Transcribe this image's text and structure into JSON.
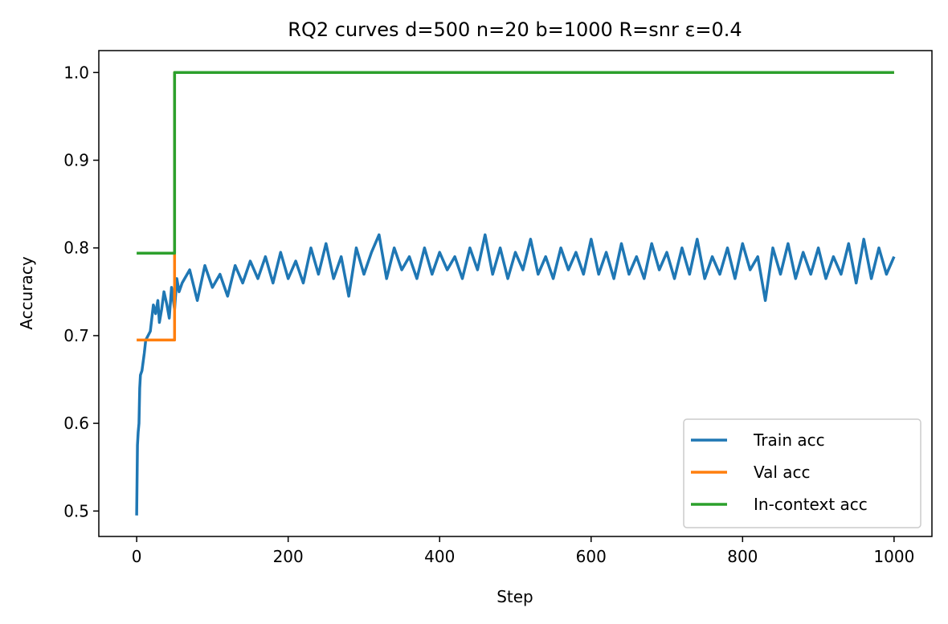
{
  "chart_data": {
    "type": "line",
    "title": "RQ2 curves d=500 n=20 b=1000 R=snr ε=0.4",
    "xlabel": "Step",
    "ylabel": "Accuracy",
    "xlim": [
      -50,
      1050
    ],
    "ylim": [
      0.471,
      1.025
    ],
    "xticks": [
      0,
      200,
      400,
      600,
      800,
      1000
    ],
    "xtick_labels": [
      "0",
      "200",
      "400",
      "600",
      "800",
      "1000"
    ],
    "yticks": [
      0.5,
      0.6,
      0.7,
      0.8,
      0.9,
      1.0
    ],
    "ytick_labels": [
      "0.5",
      "0.6",
      "0.7",
      "0.8",
      "0.9",
      "1.0"
    ],
    "grid": false,
    "legend_placement": "lower right",
    "series": [
      {
        "name": "Train acc",
        "color": "#1f77b4",
        "x": [
          0,
          1,
          2,
          3,
          4,
          5,
          7,
          10,
          12,
          15,
          18,
          20,
          22,
          25,
          28,
          30,
          33,
          36,
          40,
          43,
          46,
          50,
          53,
          56,
          60,
          70,
          80,
          90,
          100,
          110,
          120,
          130,
          140,
          150,
          160,
          170,
          180,
          190,
          200,
          210,
          220,
          230,
          240,
          250,
          260,
          270,
          280,
          290,
          300,
          310,
          320,
          330,
          340,
          350,
          360,
          370,
          380,
          390,
          400,
          410,
          420,
          430,
          440,
          450,
          460,
          470,
          480,
          490,
          500,
          510,
          520,
          530,
          540,
          550,
          560,
          570,
          580,
          590,
          600,
          610,
          620,
          630,
          640,
          650,
          660,
          670,
          680,
          690,
          700,
          710,
          720,
          730,
          740,
          750,
          760,
          770,
          780,
          790,
          800,
          810,
          820,
          830,
          840,
          850,
          860,
          870,
          880,
          890,
          900,
          910,
          920,
          930,
          940,
          950,
          960,
          970,
          980,
          990,
          1000
        ],
        "y": [
          0.495,
          0.575,
          0.59,
          0.6,
          0.64,
          0.655,
          0.66,
          0.68,
          0.695,
          0.7,
          0.705,
          0.72,
          0.735,
          0.725,
          0.74,
          0.715,
          0.73,
          0.75,
          0.735,
          0.72,
          0.755,
          0.73,
          0.765,
          0.75,
          0.76,
          0.775,
          0.74,
          0.78,
          0.755,
          0.77,
          0.745,
          0.78,
          0.76,
          0.785,
          0.765,
          0.79,
          0.76,
          0.795,
          0.765,
          0.785,
          0.76,
          0.8,
          0.77,
          0.805,
          0.765,
          0.79,
          0.745,
          0.8,
          0.77,
          0.795,
          0.815,
          0.765,
          0.8,
          0.775,
          0.79,
          0.765,
          0.8,
          0.77,
          0.795,
          0.775,
          0.79,
          0.765,
          0.8,
          0.775,
          0.815,
          0.77,
          0.8,
          0.765,
          0.795,
          0.775,
          0.81,
          0.77,
          0.79,
          0.765,
          0.8,
          0.775,
          0.795,
          0.77,
          0.81,
          0.77,
          0.795,
          0.765,
          0.805,
          0.77,
          0.79,
          0.765,
          0.805,
          0.775,
          0.795,
          0.765,
          0.8,
          0.77,
          0.81,
          0.765,
          0.79,
          0.77,
          0.8,
          0.765,
          0.805,
          0.775,
          0.79,
          0.74,
          0.8,
          0.77,
          0.805,
          0.765,
          0.795,
          0.77,
          0.8,
          0.765,
          0.79,
          0.77,
          0.805,
          0.76,
          0.81,
          0.765,
          0.8,
          0.77,
          0.79
        ]
      },
      {
        "name": "Val acc",
        "color": "#ff7f0e",
        "x": [
          0,
          50,
          50,
          1000
        ],
        "y": [
          0.695,
          0.695,
          1.0,
          1.0
        ]
      },
      {
        "name": "In-context acc",
        "color": "#2ca02c",
        "x": [
          0,
          50,
          50,
          1000
        ],
        "y": [
          0.794,
          0.794,
          1.0,
          1.0
        ]
      }
    ]
  }
}
